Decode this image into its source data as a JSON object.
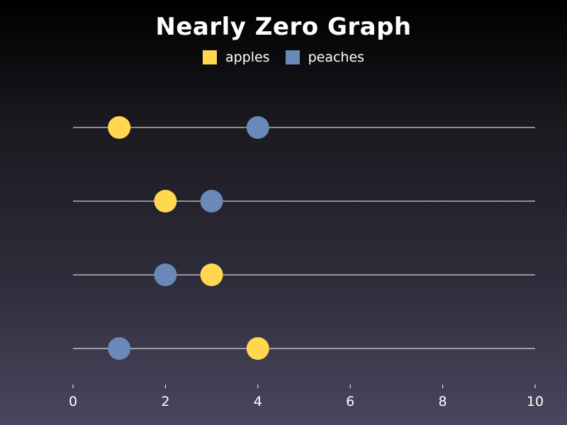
{
  "chart_data": {
    "type": "scatter",
    "title": "Nearly Zero Graph",
    "xlabel": "",
    "ylabel": "",
    "xlim": [
      0,
      10
    ],
    "xticks": [
      "0",
      "2",
      "4",
      "6",
      "8",
      "10"
    ],
    "rows": 4,
    "grid": "horizontal lines per row",
    "legend_position": "top-center",
    "series": [
      {
        "name": "apples",
        "color": "#ffd84f",
        "x": [
          1,
          2,
          3,
          4
        ]
      },
      {
        "name": "peaches",
        "color": "#6a89b8",
        "x": [
          4,
          3,
          2,
          1
        ]
      }
    ]
  }
}
